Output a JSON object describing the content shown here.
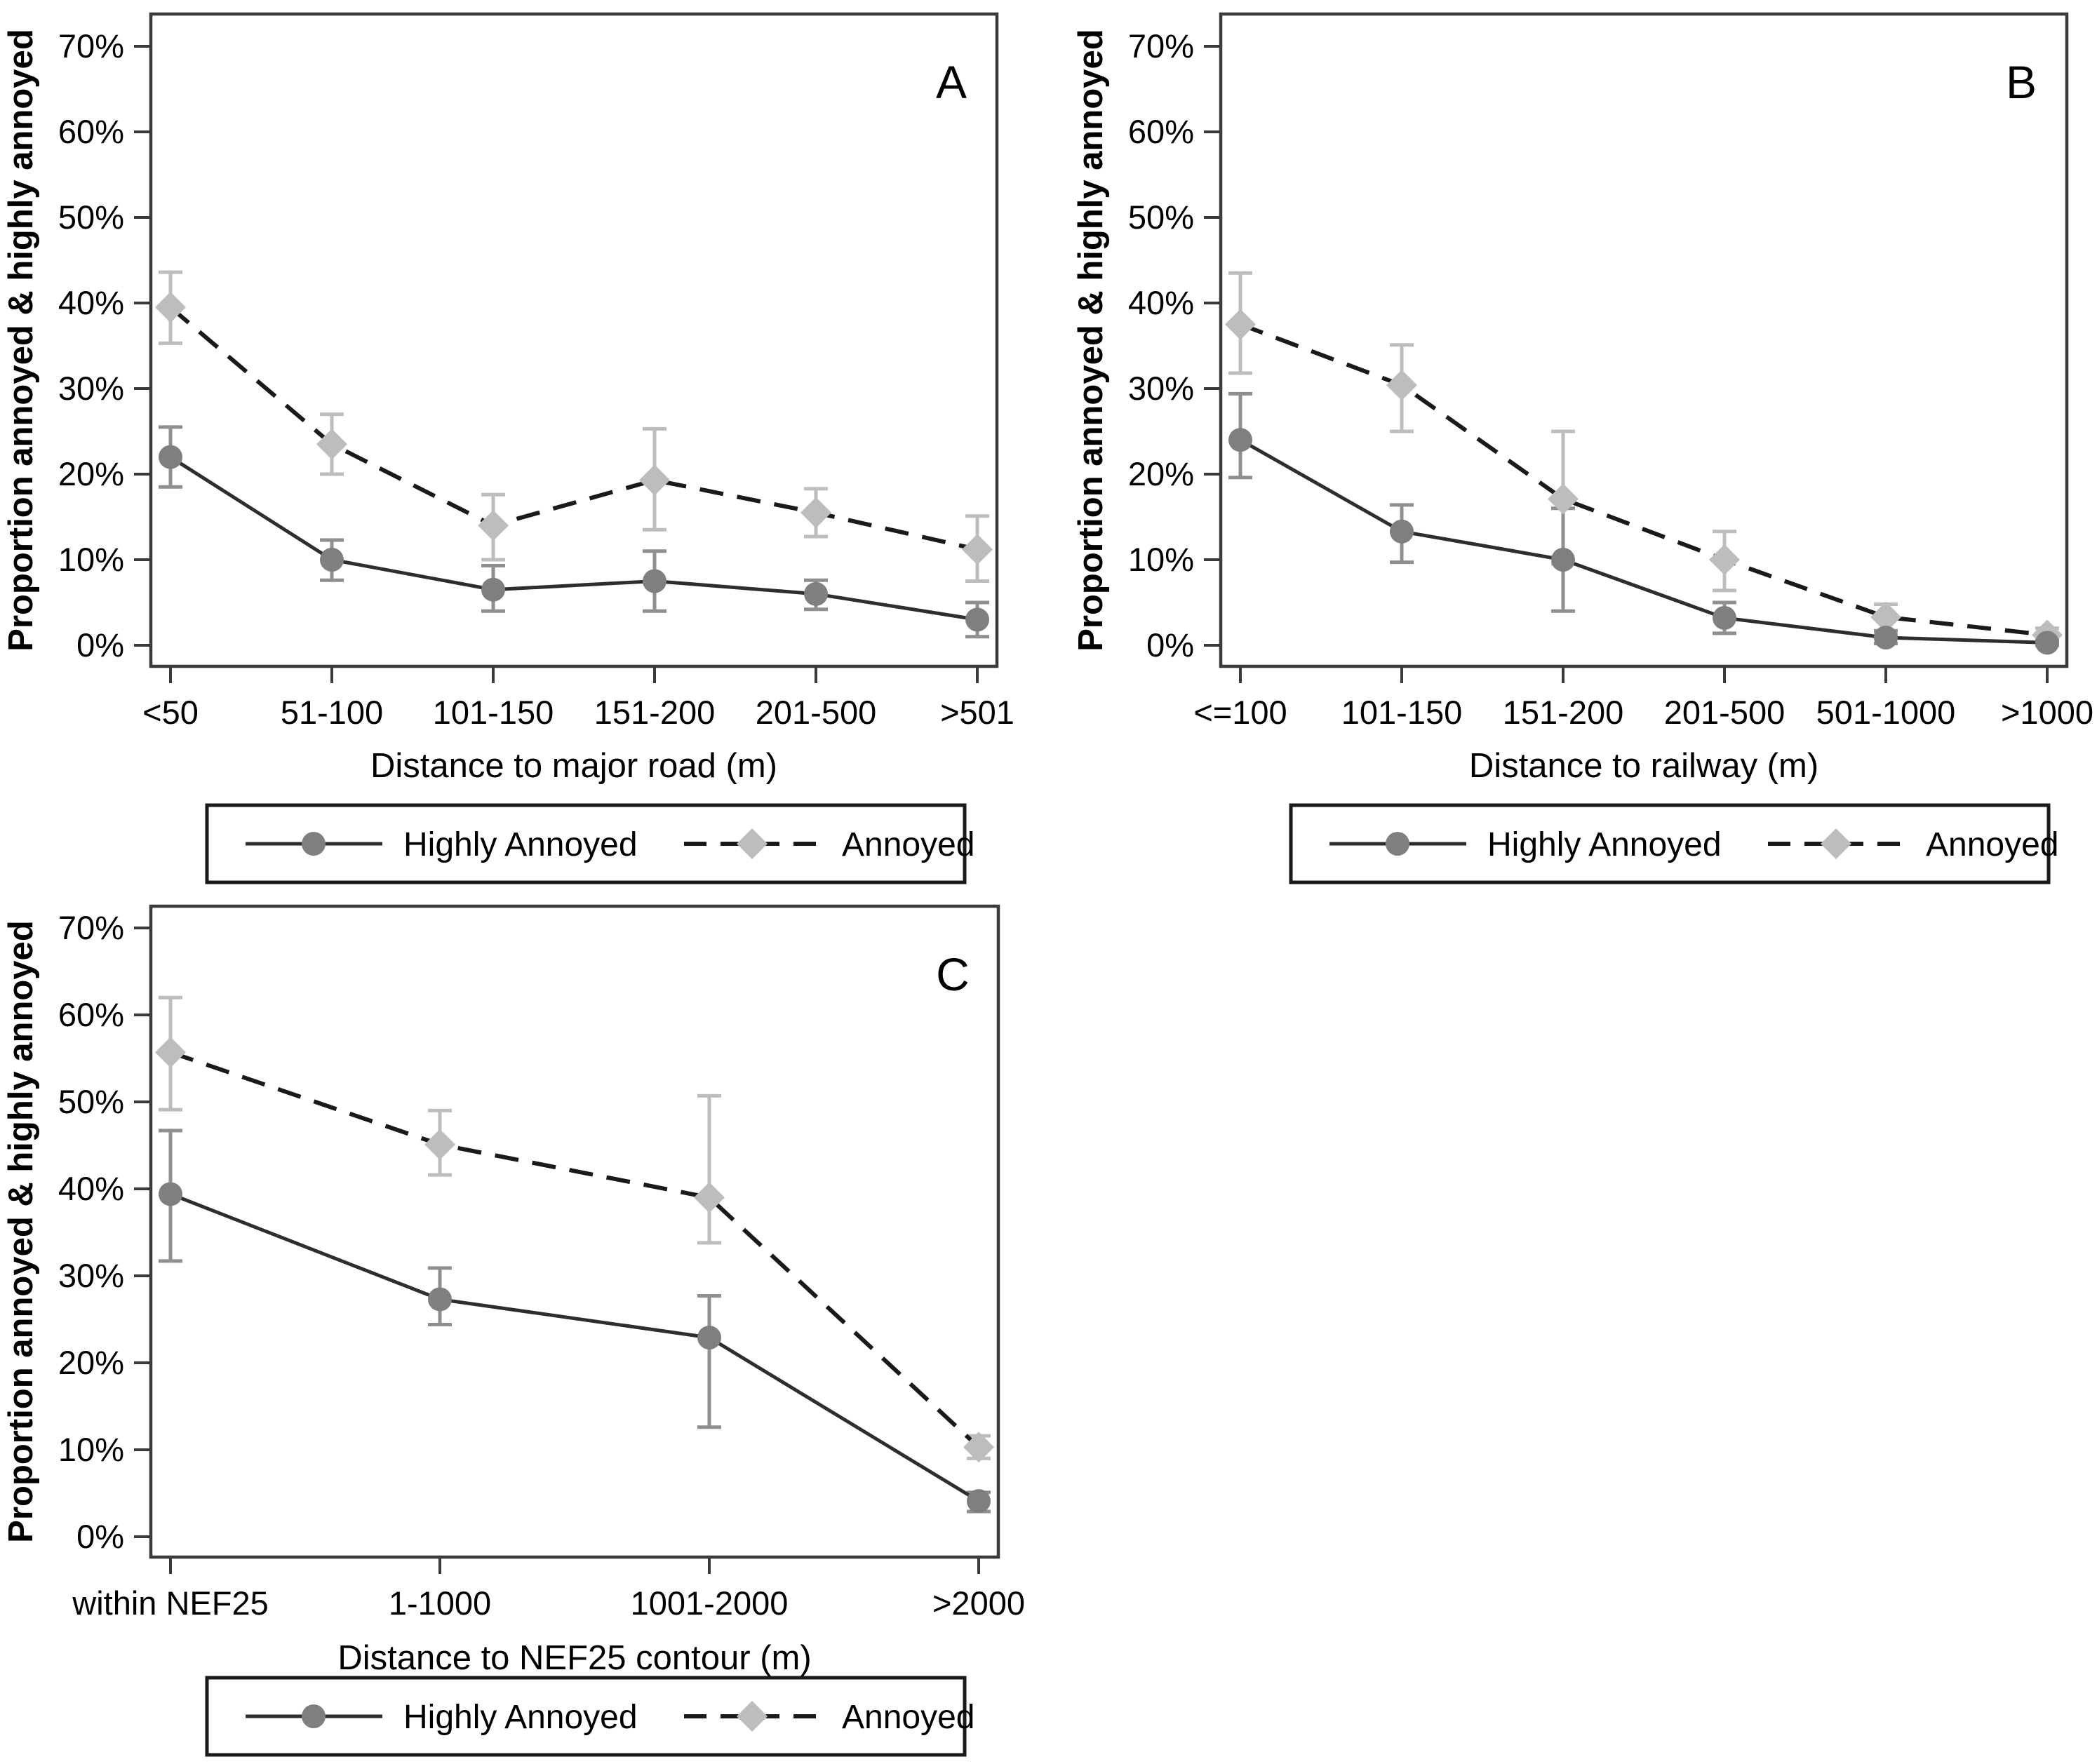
{
  "figure": {
    "background": "#ffffff",
    "axis_color": "#3a3a3a",
    "text_color": "#000000",
    "ylabel": "Proportion annoyed & highly annoyed",
    "yticks": [
      "0%",
      "10%",
      "20%",
      "30%",
      "40%",
      "50%",
      "60%",
      "70%"
    ],
    "legend": {
      "highly_annoyed_label": "Highly Annoyed",
      "annoyed_label": "Annoyed"
    },
    "series_styles": {
      "highly_annoyed": {
        "marker": "circle",
        "marker_color": "#7f7f7f",
        "line": "solid",
        "line_color": "#2e2e2e",
        "errorbar_color": "#8f8f8f"
      },
      "annoyed": {
        "marker": "diamond",
        "marker_color": "#bdbdbd",
        "line": "dashed",
        "line_color": "#1a1a1a",
        "errorbar_color": "#bdbdbd"
      }
    }
  },
  "chart_data": [
    {
      "type": "line",
      "panel_letter": "A",
      "xlabel": "Distance to major road (m)",
      "ylabel": "Proportion annoyed & highly annoyed",
      "categories": [
        "<50",
        "51-100",
        "101-150",
        "151-200",
        "201-500",
        ">501"
      ],
      "ylim": [
        0,
        70
      ],
      "grid": false,
      "legend_position": "bottom",
      "series": [
        {
          "name": "Highly Annoyed",
          "marker": "circle",
          "style": "solid",
          "values": [
            22.0,
            10.0,
            6.5,
            7.5,
            6.0,
            3.0
          ],
          "ci_low": [
            18.5,
            7.6,
            4.0,
            4.0,
            4.2,
            1.0
          ],
          "ci_high": [
            25.5,
            12.3,
            9.3,
            11.0,
            7.6,
            5.0
          ]
        },
        {
          "name": "Annoyed",
          "marker": "diamond",
          "style": "dashed",
          "values": [
            39.5,
            23.5,
            14.0,
            19.3,
            15.5,
            11.2
          ],
          "ci_low": [
            35.3,
            20.0,
            10.0,
            13.5,
            12.7,
            7.5
          ],
          "ci_high": [
            43.6,
            27.0,
            17.6,
            25.3,
            18.3,
            15.1
          ]
        }
      ]
    },
    {
      "type": "line",
      "panel_letter": "B",
      "xlabel": "Distance to railway (m)",
      "ylabel": "Proportion annoyed & highly annoyed",
      "categories": [
        "<=100",
        "101-150",
        "151-200",
        "201-500",
        "501-1000",
        ">1000"
      ],
      "ylim": [
        0,
        70
      ],
      "grid": false,
      "legend_position": "bottom",
      "series": [
        {
          "name": "Highly Annoyed",
          "marker": "circle",
          "style": "solid",
          "values": [
            24.0,
            13.3,
            10.0,
            3.2,
            0.9,
            0.3
          ],
          "ci_low": [
            19.6,
            9.7,
            4.0,
            1.4,
            0.2,
            0.0
          ],
          "ci_high": [
            29.4,
            16.4,
            16.0,
            5.0,
            1.7,
            0.8
          ]
        },
        {
          "name": "Annoyed",
          "marker": "diamond",
          "style": "dashed",
          "values": [
            37.5,
            30.4,
            17.1,
            10.0,
            3.3,
            1.2
          ],
          "ci_low": [
            31.8,
            25.0,
            9.5,
            6.4,
            1.3,
            0.4
          ],
          "ci_high": [
            43.5,
            35.1,
            25.0,
            13.3,
            4.8,
            2.0
          ]
        }
      ]
    },
    {
      "type": "line",
      "panel_letter": "C",
      "xlabel": "Distance to NEF25 contour (m)",
      "ylabel": "Proportion annoyed & highly annoyed",
      "categories": [
        "within NEF25",
        "1-1000",
        "1001-2000",
        ">2000"
      ],
      "ylim": [
        0,
        70
      ],
      "grid": false,
      "legend_position": "bottom",
      "series": [
        {
          "name": "Highly Annoyed",
          "marker": "circle",
          "style": "solid",
          "values": [
            39.4,
            27.3,
            22.9,
            4.1
          ],
          "ci_low": [
            31.7,
            24.4,
            12.6,
            2.9
          ],
          "ci_high": [
            46.7,
            30.9,
            27.7,
            5.1
          ]
        },
        {
          "name": "Annoyed",
          "marker": "diamond",
          "style": "dashed",
          "values": [
            55.7,
            45.1,
            39.0,
            10.3
          ],
          "ci_low": [
            49.1,
            41.6,
            33.8,
            9.0
          ],
          "ci_high": [
            62.0,
            49.0,
            50.7,
            11.6
          ]
        }
      ]
    }
  ]
}
